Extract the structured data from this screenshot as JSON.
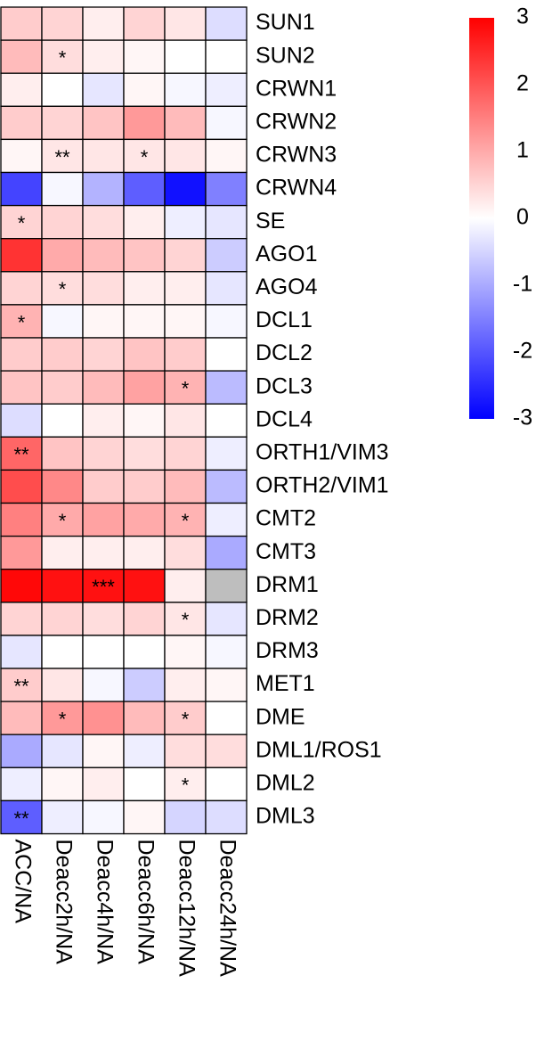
{
  "chart_data": {
    "type": "heatmap",
    "rows": [
      "SUN1",
      "SUN2",
      "CRWN1",
      "CRWN2",
      "CRWN3",
      "CRWN4",
      "SE",
      "AGO1",
      "AGO4",
      "DCL1",
      "DCL2",
      "DCL3",
      "DCL4",
      "ORTH1/VIM3",
      "ORTH2/VIM1",
      "CMT2",
      "CMT3",
      "DRM1",
      "DRM2",
      "DRM3",
      "MET1",
      "DME",
      "DML1/ROS1",
      "DML2",
      "DML3"
    ],
    "columns": [
      "ACC/NA",
      "Deacc2h/NA",
      "Deacc4h/NA",
      "Deacc6h/NA",
      "Deacc12h/NA",
      "Deacc24h/NA"
    ],
    "values": [
      [
        0.6,
        0.5,
        0.2,
        0.5,
        0.3,
        -0.4
      ],
      [
        0.8,
        0.4,
        0.2,
        0.1,
        0.0,
        0.0
      ],
      [
        0.2,
        0.0,
        -0.3,
        0.1,
        -0.1,
        -0.2
      ],
      [
        0.6,
        0.5,
        0.7,
        1.2,
        0.8,
        -0.1
      ],
      [
        0.1,
        0.3,
        0.3,
        0.3,
        0.3,
        0.1
      ],
      [
        -2.2,
        -0.1,
        -0.9,
        -1.9,
        -2.8,
        -1.5
      ],
      [
        0.5,
        0.5,
        0.4,
        0.2,
        -0.2,
        -0.3
      ],
      [
        2.4,
        1.0,
        0.8,
        0.7,
        0.5,
        -0.6
      ],
      [
        0.5,
        0.4,
        0.4,
        0.2,
        0.2,
        -0.3
      ],
      [
        0.9,
        -0.1,
        0.1,
        0.1,
        0.1,
        -0.1
      ],
      [
        0.6,
        0.6,
        0.5,
        0.7,
        0.6,
        0.0
      ],
      [
        0.7,
        0.6,
        0.8,
        1.1,
        0.9,
        -0.8
      ],
      [
        -0.4,
        0.0,
        0.2,
        0.1,
        0.3,
        0.0
      ],
      [
        1.8,
        0.7,
        0.5,
        0.4,
        0.5,
        -0.2
      ],
      [
        2.1,
        1.4,
        0.6,
        0.6,
        0.8,
        -0.8
      ],
      [
        1.5,
        1.0,
        1.1,
        1.0,
        0.9,
        -0.2
      ],
      [
        1.2,
        0.2,
        0.2,
        0.2,
        0.4,
        -1.0
      ],
      [
        2.9,
        2.8,
        2.8,
        2.8,
        0.2,
        null
      ],
      [
        0.5,
        0.5,
        0.4,
        0.5,
        0.3,
        -0.3
      ],
      [
        -0.3,
        0.0,
        0.0,
        0.0,
        0.1,
        -0.1
      ],
      [
        0.6,
        0.3,
        -0.1,
        -0.6,
        0.2,
        0.1
      ],
      [
        0.8,
        1.2,
        1.3,
        0.8,
        0.6,
        0.0
      ],
      [
        -1.0,
        -0.3,
        0.1,
        -0.2,
        0.4,
        0.4
      ],
      [
        -0.2,
        0.1,
        0.2,
        0.0,
        0.2,
        0.0
      ],
      [
        -1.9,
        -0.2,
        -0.1,
        0.1,
        -0.5,
        -0.4
      ]
    ],
    "annotations": [
      [
        null,
        null,
        null,
        null,
        null,
        null
      ],
      [
        null,
        "*",
        null,
        null,
        null,
        null
      ],
      [
        null,
        null,
        null,
        null,
        null,
        null
      ],
      [
        null,
        null,
        null,
        null,
        null,
        null
      ],
      [
        null,
        "**",
        null,
        "*",
        null,
        null
      ],
      [
        null,
        null,
        null,
        null,
        null,
        null
      ],
      [
        "*",
        null,
        null,
        null,
        null,
        null
      ],
      [
        null,
        null,
        null,
        null,
        null,
        null
      ],
      [
        null,
        "*",
        null,
        null,
        null,
        null
      ],
      [
        "*",
        null,
        null,
        null,
        null,
        null
      ],
      [
        null,
        null,
        null,
        null,
        null,
        null
      ],
      [
        null,
        null,
        null,
        null,
        "*",
        null
      ],
      [
        null,
        null,
        null,
        null,
        null,
        null
      ],
      [
        "**",
        null,
        null,
        null,
        null,
        null
      ],
      [
        null,
        null,
        null,
        null,
        null,
        null
      ],
      [
        null,
        "*",
        null,
        null,
        "*",
        null
      ],
      [
        null,
        null,
        null,
        null,
        null,
        null
      ],
      [
        null,
        null,
        "***",
        null,
        null,
        null
      ],
      [
        null,
        null,
        null,
        null,
        "*",
        null
      ],
      [
        null,
        null,
        null,
        null,
        null,
        null
      ],
      [
        "**",
        null,
        null,
        null,
        null,
        null
      ],
      [
        null,
        "*",
        null,
        null,
        "*",
        null
      ],
      [
        null,
        null,
        null,
        null,
        null,
        null
      ],
      [
        null,
        null,
        null,
        null,
        "*",
        null
      ],
      [
        "**",
        null,
        null,
        null,
        null,
        null
      ]
    ],
    "colors": [
      "#0000ff",
      "#ffffff",
      "#ff0000"
    ],
    "na_color": "#bebebe",
    "clim": [
      -3,
      3
    ],
    "cticks": [
      -3,
      -2,
      -1,
      0,
      1,
      2,
      3
    ]
  }
}
